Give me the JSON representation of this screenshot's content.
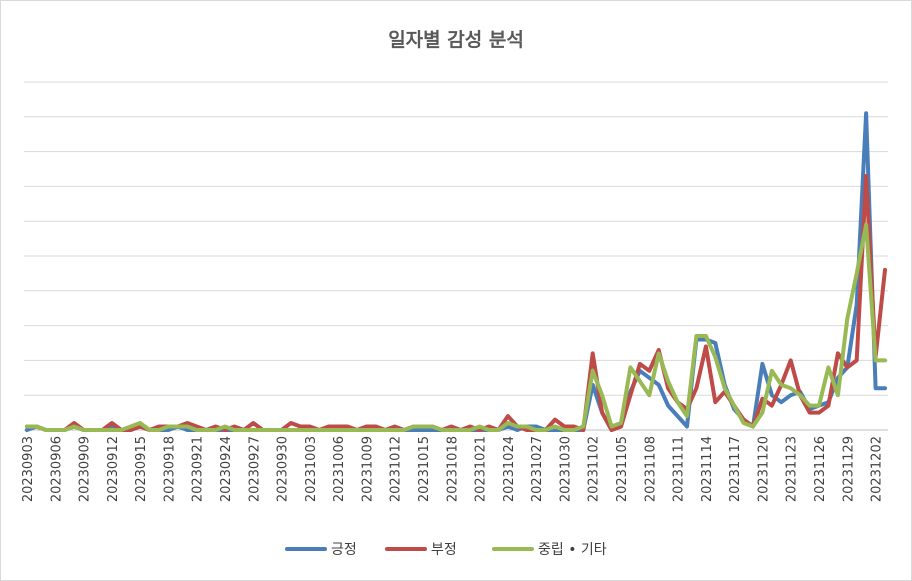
{
  "chart_data": {
    "type": "line",
    "title": "일자별 감성 분석",
    "xlabel": "",
    "ylabel": "",
    "ylim": [
      0,
      100
    ],
    "y_gridlines": 10,
    "y_tick_labels_shown": false,
    "grid": true,
    "legend_position": "bottom",
    "x": [
      "20230903",
      "20230904",
      "20230905",
      "20230906",
      "20230907",
      "20230908",
      "20230909",
      "20230910",
      "20230911",
      "20230912",
      "20230913",
      "20230914",
      "20230915",
      "20230916",
      "20230917",
      "20230918",
      "20230919",
      "20230920",
      "20230921",
      "20230922",
      "20230923",
      "20230924",
      "20230925",
      "20230926",
      "20230927",
      "20230928",
      "20230929",
      "20230930",
      "20231001",
      "20231002",
      "20231003",
      "20231004",
      "20231005",
      "20231006",
      "20231007",
      "20231008",
      "20231009",
      "20231010",
      "20231011",
      "20231012",
      "20231013",
      "20231014",
      "20231015",
      "20231016",
      "20231017",
      "20231018",
      "20231019",
      "20231020",
      "20231021",
      "20231022",
      "20231023",
      "20231024",
      "20231025",
      "20231026",
      "20231027",
      "20231028",
      "20231029",
      "20231030",
      "20231031",
      "20231101",
      "20231102",
      "20231103",
      "20231104",
      "20231105",
      "20231106",
      "20231107",
      "20231108",
      "20231109",
      "20231110",
      "20231111",
      "20231112",
      "20231113",
      "20231114",
      "20231115",
      "20231116",
      "20231117",
      "20231118",
      "20231119",
      "20231120",
      "20231121",
      "20231122",
      "20231123",
      "20231124",
      "20231125",
      "20231126",
      "20231127",
      "20231128",
      "20231129",
      "20231130",
      "20231201",
      "20231202",
      "20231203"
    ],
    "x_tick_labels": [
      "20230903",
      "20230906",
      "20230909",
      "20230912",
      "20230915",
      "20230918",
      "20230921",
      "20230924",
      "20230927",
      "20230930",
      "20231003",
      "20231006",
      "20231009",
      "20231012",
      "20231015",
      "20231018",
      "20231021",
      "20231024",
      "20231027",
      "20231030",
      "20231102",
      "20231105",
      "20231108",
      "20231111",
      "20231114",
      "20231117",
      "20231120",
      "20231123",
      "20231126",
      "20231129",
      "20231202"
    ],
    "series": [
      {
        "name": "긍정",
        "color": "#4A7EBB",
        "values": [
          0,
          1,
          0,
          0,
          0,
          1,
          0,
          0,
          0,
          1,
          0,
          0,
          1,
          0,
          0,
          0,
          1,
          0,
          0,
          0,
          0,
          0,
          0,
          0,
          0,
          0,
          0,
          0,
          0,
          0,
          0,
          0,
          0,
          0,
          0,
          0,
          0,
          0,
          0,
          0,
          0,
          0,
          0,
          0,
          0,
          0,
          0,
          0,
          0,
          0,
          0,
          1,
          0,
          1,
          1,
          0,
          0,
          0,
          0,
          0,
          13,
          5,
          0,
          1,
          11,
          17,
          15,
          13,
          7,
          4,
          1,
          26,
          26,
          25,
          13,
          6,
          3,
          1,
          19,
          10,
          8,
          10,
          11,
          6,
          7,
          8,
          15,
          18,
          36,
          91,
          12,
          12
        ]
      },
      {
        "name": "부정",
        "color": "#BE4B48",
        "values": [
          1,
          1,
          0,
          0,
          0,
          2,
          0,
          0,
          0,
          2,
          0,
          0,
          1,
          0,
          1,
          1,
          1,
          2,
          1,
          0,
          1,
          0,
          1,
          0,
          2,
          0,
          0,
          0,
          2,
          1,
          1,
          0,
          1,
          1,
          1,
          0,
          1,
          1,
          0,
          1,
          0,
          1,
          1,
          1,
          0,
          1,
          0,
          1,
          0,
          1,
          0,
          4,
          1,
          0,
          0,
          0,
          3,
          1,
          1,
          0,
          22,
          5,
          0,
          1,
          10,
          19,
          17,
          23,
          12,
          8,
          6,
          12,
          24,
          8,
          11,
          7,
          3,
          1,
          9,
          7,
          13,
          20,
          10,
          5,
          5,
          7,
          22,
          18,
          20,
          73,
          21,
          46
        ]
      },
      {
        "name": "중립 • 기타",
        "color": "#98B954",
        "values": [
          1,
          1,
          0,
          0,
          0,
          1,
          0,
          0,
          0,
          0,
          0,
          1,
          2,
          0,
          0,
          1,
          1,
          1,
          0,
          0,
          0,
          1,
          0,
          0,
          0,
          0,
          0,
          0,
          0,
          0,
          0,
          0,
          0,
          0,
          0,
          0,
          0,
          0,
          0,
          0,
          0,
          1,
          1,
          1,
          0,
          0,
          0,
          0,
          1,
          0,
          0,
          2,
          1,
          1,
          0,
          0,
          1,
          0,
          0,
          1,
          17,
          10,
          1,
          2,
          18,
          14,
          10,
          22,
          14,
          8,
          4,
          27,
          27,
          21,
          12,
          7,
          2,
          1,
          5,
          17,
          13,
          12,
          10,
          7,
          7,
          18,
          10,
          32,
          45,
          59,
          20,
          20
        ]
      }
    ]
  }
}
